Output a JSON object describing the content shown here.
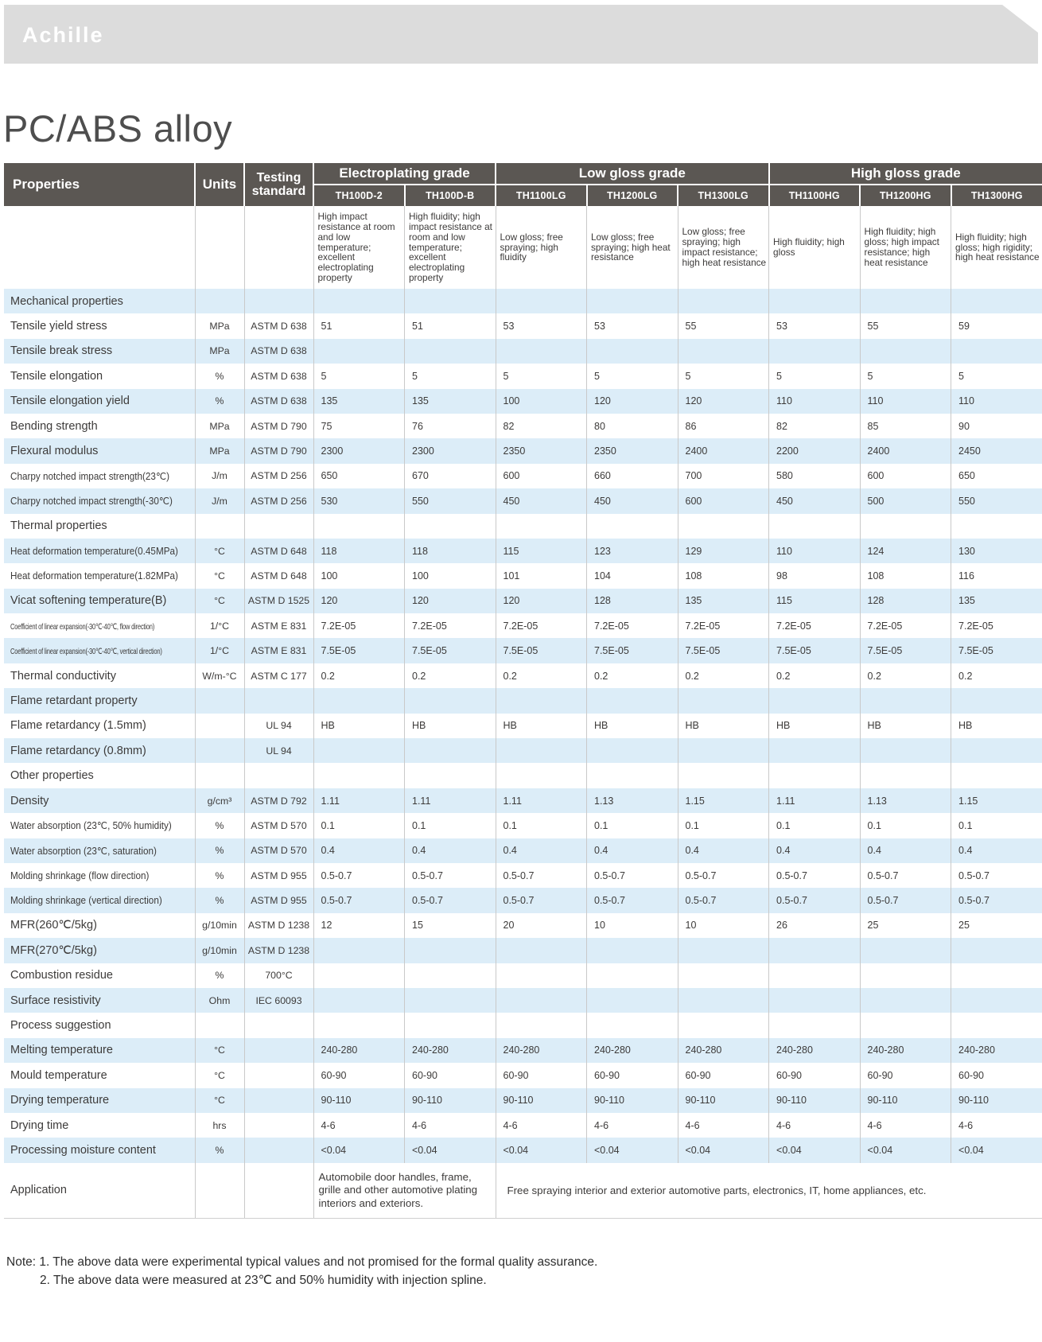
{
  "brand": {
    "logo": "Achille"
  },
  "page_title": "PC/ABS alloy",
  "colors": {
    "banner_bg": "#dcdcdc",
    "header_bg": "#5b5753",
    "header_text": "#ffffff",
    "row_alt_bg": "#dcedf8",
    "body_text": "#3d3b3a"
  },
  "table": {
    "header": {
      "properties": "Properties",
      "units": "Units",
      "testing": "Testing standard",
      "groups": [
        {
          "label": "Electroplating grade",
          "span": 2
        },
        {
          "label": "Low gloss grade",
          "span": 3
        },
        {
          "label": "High gloss grade",
          "span": 3
        }
      ],
      "models": [
        "TH100D-2",
        "TH100D-B",
        "TH1100LG",
        "TH1200LG",
        "TH1300LG",
        "TH1100HG",
        "TH1200HG",
        "TH1300HG"
      ],
      "descriptions": [
        "High impact resistance at room and low temperature; excellent electroplating property",
        "High fluidity; high impact resistance at room and low temperature; excellent electroplating property",
        "Low gloss; free spraying; high fluidity",
        "Low gloss; free spraying; high heat resistance",
        "Low gloss; free spraying; high impact resistance; high heat resistance",
        "High fluidity; high gloss",
        "High fluidity; high gloss; high impact resistance; high heat resistance",
        "High fluidity; high gloss; high rigidity; high heat resistance"
      ]
    },
    "rows": [
      {
        "type": "section",
        "label": "Mechanical properties"
      },
      {
        "type": "data",
        "label": "Tensile yield stress",
        "unit": "MPa",
        "standard": "ASTM D 638",
        "values": [
          "51",
          "51",
          "53",
          "53",
          "55",
          "53",
          "55",
          "59"
        ]
      },
      {
        "type": "data",
        "label": "Tensile break stress",
        "unit": "MPa",
        "standard": "ASTM D 638",
        "values": [
          "",
          "",
          "",
          "",
          "",
          "",
          "",
          ""
        ]
      },
      {
        "type": "data",
        "label": "Tensile elongation",
        "unit": "%",
        "standard": "ASTM D 638",
        "values": [
          "5",
          "5",
          "5",
          "5",
          "5",
          "5",
          "5",
          "5"
        ]
      },
      {
        "type": "data",
        "label": "Tensile elongation yield",
        "unit": "%",
        "standard": "ASTM D 638",
        "values": [
          "135",
          "135",
          "100",
          "120",
          "120",
          "110",
          "110",
          "110"
        ]
      },
      {
        "type": "data",
        "label": "Bending strength",
        "unit": "MPa",
        "standard": "ASTM D 790",
        "values": [
          "75",
          "76",
          "82",
          "80",
          "86",
          "82",
          "85",
          "90"
        ]
      },
      {
        "type": "data",
        "label": "Flexural modulus",
        "unit": "MPa",
        "standard": "ASTM D 790",
        "values": [
          "2300",
          "2300",
          "2350",
          "2350",
          "2400",
          "2200",
          "2400",
          "2450"
        ]
      },
      {
        "type": "data",
        "label": "Charpy notched impact strength(23℃)",
        "unit": "J/m",
        "standard": "ASTM D 256",
        "values": [
          "650",
          "670",
          "600",
          "660",
          "700",
          "580",
          "600",
          "650"
        ]
      },
      {
        "type": "data",
        "label": "Charpy notched impact strength(-30℃)",
        "unit": "J/m",
        "standard": "ASTM D 256",
        "values": [
          "530",
          "550",
          "450",
          "450",
          "600",
          "450",
          "500",
          "550"
        ]
      },
      {
        "type": "section",
        "label": "Thermal properties"
      },
      {
        "type": "data",
        "label": "Heat deformation temperature(0.45MPa)",
        "unit": "°C",
        "standard": "ASTM D 648",
        "values": [
          "118",
          "118",
          "115",
          "123",
          "129",
          "110",
          "124",
          "130"
        ]
      },
      {
        "type": "data",
        "label": "Heat deformation temperature(1.82MPa)",
        "unit": "°C",
        "standard": "ASTM D 648",
        "values": [
          "100",
          "100",
          "101",
          "104",
          "108",
          "98",
          "108",
          "116"
        ]
      },
      {
        "type": "data",
        "label": "Vicat softening temperature(B)",
        "unit": "°C",
        "standard": "ASTM D 1525",
        "values": [
          "120",
          "120",
          "120",
          "128",
          "135",
          "115",
          "128",
          "135"
        ]
      },
      {
        "type": "data",
        "label": "Coefficient of linear expansion(-30℃-40℃, flow direction)",
        "unit": "1/°C",
        "standard": "ASTM E 831",
        "values": [
          "7.2E-05",
          "7.2E-05",
          "7.2E-05",
          "7.2E-05",
          "7.2E-05",
          "7.2E-05",
          "7.2E-05",
          "7.2E-05"
        ]
      },
      {
        "type": "data",
        "label": "Coefficient of linear expansion(-30℃-40℃, vertical direction)",
        "unit": "1/°C",
        "standard": "ASTM E 831",
        "values": [
          "7.5E-05",
          "7.5E-05",
          "7.5E-05",
          "7.5E-05",
          "7.5E-05",
          "7.5E-05",
          "7.5E-05",
          "7.5E-05"
        ]
      },
      {
        "type": "data",
        "label": "Thermal conductivity",
        "unit": "W/m-°C",
        "standard": "ASTM C 177",
        "values": [
          "0.2",
          "0.2",
          "0.2",
          "0.2",
          "0.2",
          "0.2",
          "0.2",
          "0.2"
        ]
      },
      {
        "type": "section",
        "label": "Flame retardant property"
      },
      {
        "type": "data",
        "label": "Flame retardancy (1.5mm)",
        "unit": "",
        "standard": "UL 94",
        "values": [
          "HB",
          "HB",
          "HB",
          "HB",
          "HB",
          "HB",
          "HB",
          "HB"
        ]
      },
      {
        "type": "data",
        "label": "Flame retardancy (0.8mm)",
        "unit": "",
        "standard": "UL 94",
        "values": [
          "",
          "",
          "",
          "",
          "",
          "",
          "",
          ""
        ]
      },
      {
        "type": "section",
        "label": "Other properties"
      },
      {
        "type": "data",
        "label": "Density",
        "unit": "g/cm³",
        "standard": "ASTM D 792",
        "values": [
          "1.11",
          "1.11",
          "1.11",
          "1.13",
          "1.15",
          "1.11",
          "1.13",
          "1.15"
        ]
      },
      {
        "type": "data",
        "label": "Water absorption (23℃, 50% humidity)",
        "unit": "%",
        "standard": "ASTM D 570",
        "values": [
          "0.1",
          "0.1",
          "0.1",
          "0.1",
          "0.1",
          "0.1",
          "0.1",
          "0.1"
        ]
      },
      {
        "type": "data",
        "label": "Water absorption (23℃, saturation)",
        "unit": "%",
        "standard": "ASTM D 570",
        "values": [
          "0.4",
          "0.4",
          "0.4",
          "0.4",
          "0.4",
          "0.4",
          "0.4",
          "0.4"
        ]
      },
      {
        "type": "data",
        "label": "Molding shrinkage (flow direction)",
        "unit": "%",
        "standard": "ASTM D 955",
        "values": [
          "0.5-0.7",
          "0.5-0.7",
          "0.5-0.7",
          "0.5-0.7",
          "0.5-0.7",
          "0.5-0.7",
          "0.5-0.7",
          "0.5-0.7"
        ]
      },
      {
        "type": "data",
        "label": "Molding shrinkage (vertical direction)",
        "unit": "%",
        "standard": "ASTM D 955",
        "values": [
          "0.5-0.7",
          "0.5-0.7",
          "0.5-0.7",
          "0.5-0.7",
          "0.5-0.7",
          "0.5-0.7",
          "0.5-0.7",
          "0.5-0.7"
        ]
      },
      {
        "type": "data",
        "label": "MFR(260℃/5kg)",
        "unit": "g/10min",
        "standard": "ASTM D 1238",
        "values": [
          "12",
          "15",
          "20",
          "10",
          "10",
          "26",
          "25",
          "25"
        ]
      },
      {
        "type": "data",
        "label": "MFR(270℃/5kg)",
        "unit": "g/10min",
        "standard": "ASTM D 1238",
        "values": [
          "",
          "",
          "",
          "",
          "",
          "",
          "",
          ""
        ]
      },
      {
        "type": "data",
        "label": "Combustion residue",
        "unit": "%",
        "standard": "700°C",
        "values": [
          "",
          "",
          "",
          "",
          "",
          "",
          "",
          ""
        ]
      },
      {
        "type": "data",
        "label": "Surface resistivity",
        "unit": "Ohm",
        "standard": "IEC 60093",
        "values": [
          "",
          "",
          "",
          "",
          "",
          "",
          "",
          ""
        ]
      },
      {
        "type": "section",
        "label": "Process suggestion"
      },
      {
        "type": "data",
        "label": "Melting temperature",
        "unit": "°C",
        "standard": "",
        "values": [
          "240-280",
          "240-280",
          "240-280",
          "240-280",
          "240-280",
          "240-280",
          "240-280",
          "240-280"
        ]
      },
      {
        "type": "data",
        "label": "Mould temperature",
        "unit": "°C",
        "standard": "",
        "values": [
          "60-90",
          "60-90",
          "60-90",
          "60-90",
          "60-90",
          "60-90",
          "60-90",
          "60-90"
        ]
      },
      {
        "type": "data",
        "label": "Drying temperature",
        "unit": "°C",
        "standard": "",
        "values": [
          "90-110",
          "90-110",
          "90-110",
          "90-110",
          "90-110",
          "90-110",
          "90-110",
          "90-110"
        ]
      },
      {
        "type": "data",
        "label": "Drying time",
        "unit": "hrs",
        "standard": "",
        "values": [
          "4-6",
          "4-6",
          "4-6",
          "4-6",
          "4-6",
          "4-6",
          "4-6",
          "4-6"
        ]
      },
      {
        "type": "data",
        "label": "Processing moisture content",
        "unit": "%",
        "standard": "",
        "values": [
          "<0.04",
          "<0.04",
          "<0.04",
          "<0.04",
          "<0.04",
          "<0.04",
          "<0.04",
          "<0.04"
        ]
      }
    ],
    "application": {
      "label": "Application",
      "left": "Automobile door handles, frame, grille and other automotive plating interiors and exteriors.",
      "right": "Free spraying interior and exterior automotive parts, electronics, IT, home appliances, etc."
    }
  },
  "notes": {
    "line1": "Note: 1. The above data were experimental typical values and not promised for the formal quality assurance.",
    "line2": "2. The above data were measured at 23℃ and 50% humidity with injection spline."
  }
}
